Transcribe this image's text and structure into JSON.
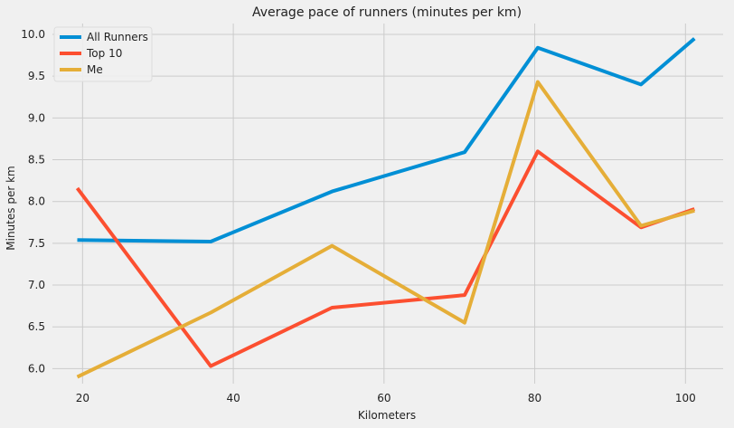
{
  "chart_data": {
    "type": "line",
    "title": "Average pace of runners (minutes per km)",
    "xlabel": "Kilometers",
    "ylabel": "Minutes per km",
    "xlim": [
      16.0,
      105.0
    ],
    "ylim": [
      5.82,
      10.13
    ],
    "xticks": [
      20,
      40,
      60,
      80,
      100
    ],
    "yticks": [
      6.0,
      6.5,
      7.0,
      7.5,
      8.0,
      8.5,
      9.0,
      9.5,
      10.0
    ],
    "grid": true,
    "legend_position": "top-left",
    "x": [
      19.3,
      37.0,
      53.1,
      70.7,
      80.4,
      94.1,
      101.2
    ],
    "series": [
      {
        "name": "All Runners",
        "color": "#008fd5",
        "values": [
          7.54,
          7.52,
          8.12,
          8.59,
          9.84,
          9.4,
          9.95
        ]
      },
      {
        "name": "Top 10",
        "color": "#fc4f30",
        "values": [
          8.16,
          6.03,
          6.73,
          6.88,
          8.6,
          7.69,
          7.91
        ]
      },
      {
        "name": "Me",
        "color": "#e5ae38",
        "values": [
          5.9,
          6.67,
          7.47,
          6.55,
          9.43,
          7.71,
          7.89
        ]
      }
    ]
  }
}
